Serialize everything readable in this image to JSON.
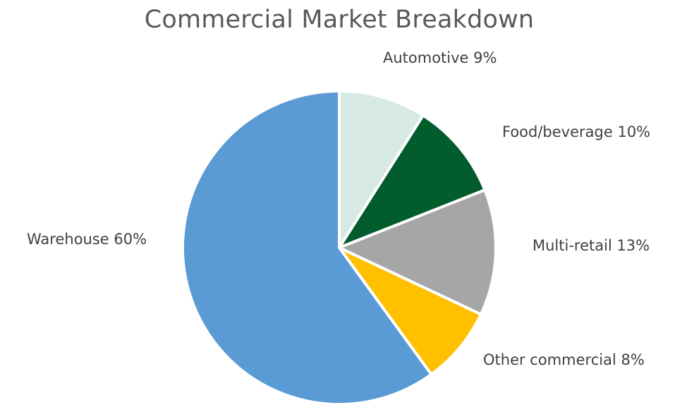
{
  "chart_data": {
    "type": "pie",
    "title": "Commercial Market Breakdown",
    "slices": [
      {
        "label": "Automotive 9%",
        "value": 9,
        "color": "#d6e9e3"
      },
      {
        "label": "Food/beverage 10%",
        "value": 10,
        "color": "#025c2c"
      },
      {
        "label": "Multi-retail 13%",
        "value": 13,
        "color": "#a6a6a6"
      },
      {
        "label": "Other commercial 8%",
        "value": 8,
        "color": "#ffc000"
      },
      {
        "label": "Warehouse 60%",
        "value": 60,
        "color": "#5b9bd5"
      }
    ],
    "start_angle_deg": 0,
    "direction": "clockwise",
    "labels_outside": true
  }
}
